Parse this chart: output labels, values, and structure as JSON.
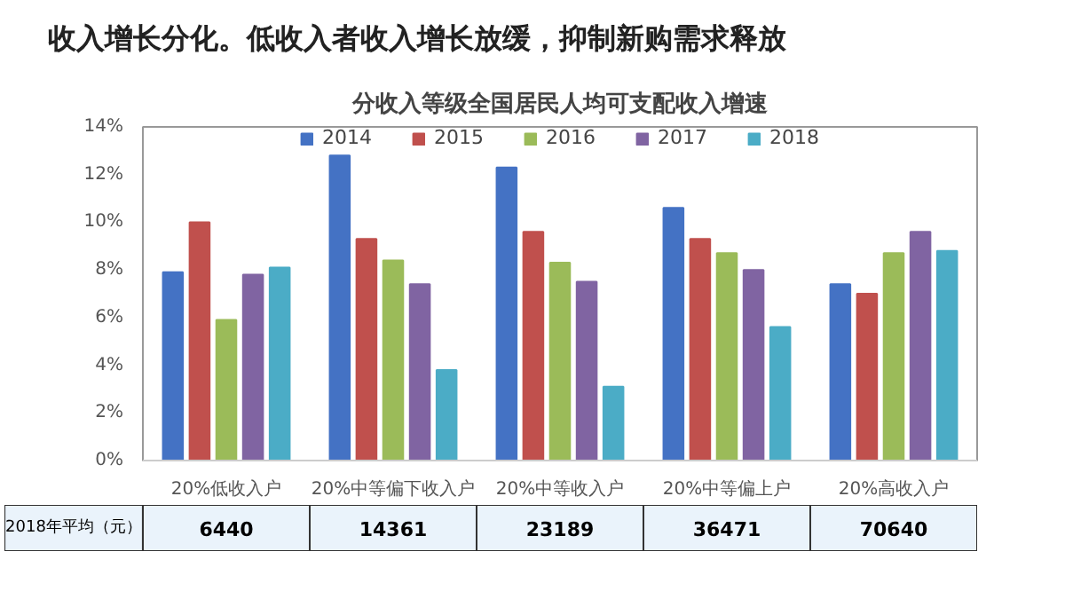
{
  "chart_data": {
    "type": "bar",
    "title": "收入增长分化。低收入者收入增长放缓，抑制新购需求释放",
    "subtitle": "分收入等级全国居民人均可支配收入增速",
    "categories": [
      "20%低收入户",
      "20%中等偏下收入户",
      "20%中等收入户",
      "20%中等偏上户",
      "20%高收入户"
    ],
    "series": [
      {
        "name": "2014",
        "color": "#4472c4",
        "values": [
          7.9,
          12.8,
          12.3,
          10.6,
          7.4
        ]
      },
      {
        "name": "2015",
        "color": "#c0504d",
        "values": [
          10.0,
          9.3,
          9.6,
          9.3,
          7.0
        ]
      },
      {
        "name": "2016",
        "color": "#9bbb59",
        "values": [
          5.9,
          8.4,
          8.3,
          8.7,
          8.7
        ]
      },
      {
        "name": "2017",
        "color": "#8064a2",
        "values": [
          7.8,
          7.4,
          7.5,
          8.0,
          9.6
        ]
      },
      {
        "name": "2018",
        "color": "#4bacc6",
        "values": [
          8.1,
          3.8,
          3.1,
          5.6,
          8.8
        ]
      }
    ],
    "ylim": [
      0,
      14
    ],
    "yticks": [
      {
        "value": 0,
        "label": "0%"
      },
      {
        "value": 2,
        "label": "2%"
      },
      {
        "value": 4,
        "label": "4%"
      },
      {
        "value": 6,
        "label": "6%"
      },
      {
        "value": 8,
        "label": "8%"
      },
      {
        "value": 10,
        "label": "10%"
      },
      {
        "value": 12,
        "label": "12%"
      },
      {
        "value": 14,
        "label": "14%"
      }
    ],
    "grid": false,
    "legend": "top",
    "annotations": [
      "2018年平均（元）",
      "6440",
      "14361",
      "23189",
      "36471",
      "70640"
    ]
  }
}
